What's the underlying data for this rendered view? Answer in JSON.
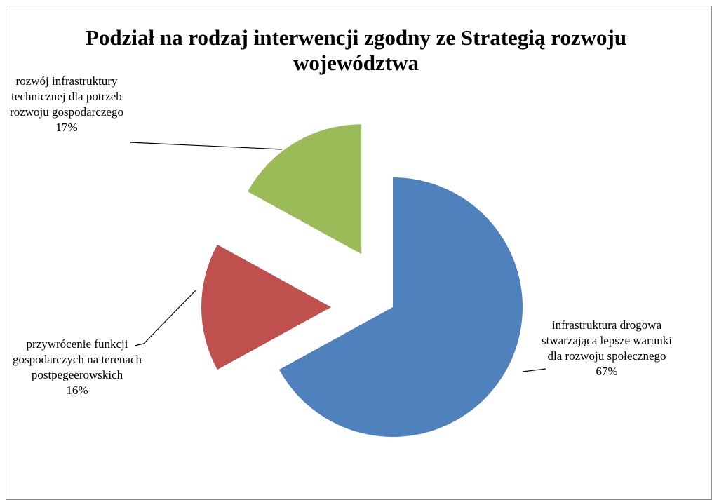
{
  "chart_data": {
    "type": "pie",
    "title": "Podział na rodzaj interwencji zgodny ze Strategią rozwoju województwa",
    "categories": [
      "infrastruktura drogowa stwarzająca lepsze warunki dla rozwoju społecznego",
      "przywrócenie funkcji gospodarczych na terenach postpegeerowskich",
      "rozwój infrastruktury technicznej dla potrzeb rozwoju gospodarczego"
    ],
    "values": [
      67,
      16,
      17
    ],
    "value_labels": [
      "67%",
      "16%",
      "17%"
    ],
    "colors": [
      "#4f81bd",
      "#c0504d",
      "#9bbb59"
    ],
    "exploded": true
  }
}
